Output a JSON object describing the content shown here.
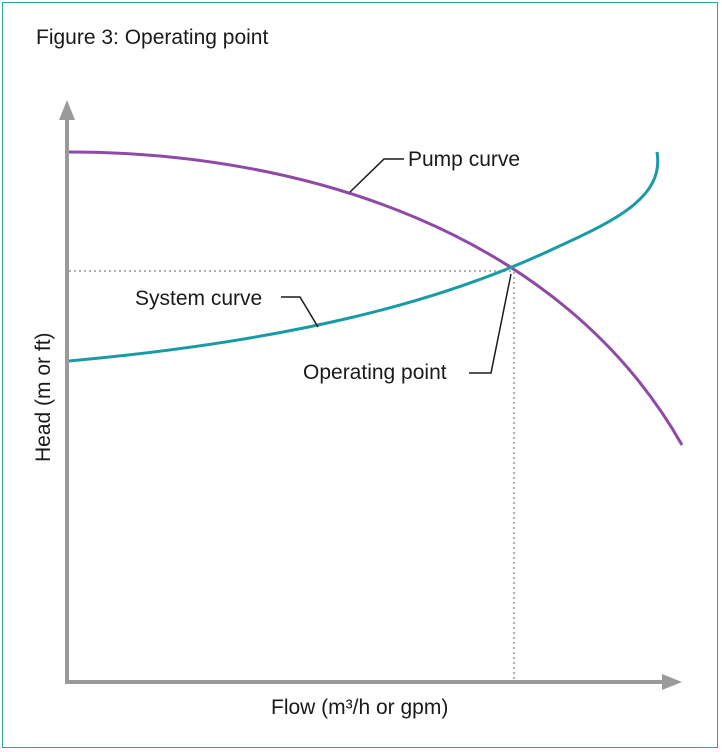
{
  "figure": {
    "title": "Figure 3: Operating point",
    "ylabel": "Head (m or ft)",
    "xlabel": "Flow (m³/h or gpm)"
  },
  "labels": {
    "pump_curve": "Pump curve",
    "system_curve": "System curve",
    "operating_point": "Operating point"
  },
  "colors": {
    "pump_curve": "#8e4aa6",
    "system_curve": "#1a9aa5",
    "axis": "#9a9a9a",
    "guide": "#b0b0b0",
    "frame": "#2aa0a8"
  }
}
